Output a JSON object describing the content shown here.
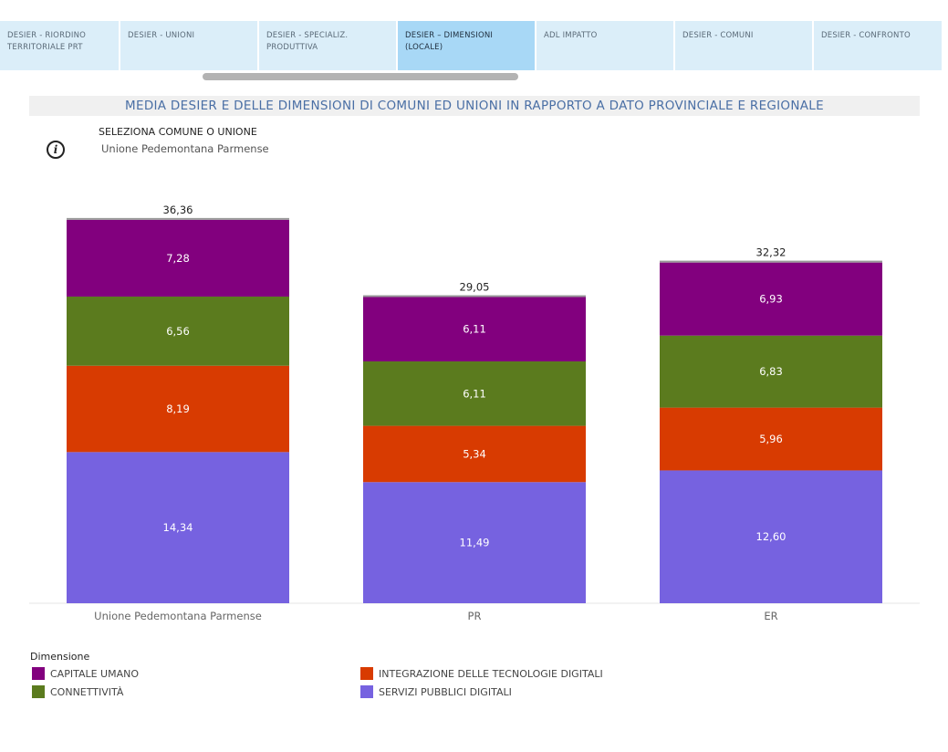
{
  "tabs": [
    {
      "label": "DESIER - RIORDINO TERRITORIALE PRT",
      "active": false
    },
    {
      "label": "DESIER - UNIONI",
      "active": false
    },
    {
      "label": "DESIER - SPECIALIZ. PRODUTTIVA",
      "active": false
    },
    {
      "label": "DESIER – DIMENSIONI (LOCALE)",
      "active": true
    },
    {
      "label": "ADL IMPATTO",
      "active": false
    },
    {
      "label": "DESIER - COMUNI",
      "active": false
    },
    {
      "label": "DESIER - CONFRONTO",
      "active": false
    }
  ],
  "title": "MEDIA DESIER E DELLE DIMENSIONI DI COMUNI ED UNIONI IN RAPPORTO A DATO PROVINCIALE E REGIONALE",
  "selector": {
    "label": "SELEZIONA COMUNE O UNIONE",
    "value": "Unione Pedemontana Parmense",
    "info_icon": "info-icon"
  },
  "legend": {
    "title": "Dimensione"
  },
  "chart_data": {
    "type": "bar",
    "stacked": true,
    "categories": [
      "Unione Pedemontana Parmense",
      "PR",
      "ER"
    ],
    "totals": [
      "36,36",
      "29,05",
      "32,32"
    ],
    "total_values": [
      36.36,
      29.05,
      32.32
    ],
    "series": [
      {
        "name": "SERVIZI PUBBLICI DIGITALI",
        "color": "#7662e0",
        "values": [
          14.34,
          11.49,
          12.6
        ],
        "labels": [
          "14,34",
          "11,49",
          "12,60"
        ]
      },
      {
        "name": "INTEGRAZIONE DELLE TECNOLOGIE DIGITALI",
        "color": "#d83b01",
        "values": [
          8.19,
          5.34,
          5.96
        ],
        "labels": [
          "8,19",
          "5,34",
          "5,96"
        ]
      },
      {
        "name": "CONNETTIVITÀ",
        "color": "#5b7b1e",
        "values": [
          6.56,
          6.11,
          6.83
        ],
        "labels": [
          "6,56",
          "6,11",
          "6,83"
        ]
      },
      {
        "name": "CAPITALE UMANO",
        "color": "#82007e",
        "values": [
          7.28,
          6.11,
          6.93
        ],
        "labels": [
          "7,28",
          "6,11",
          "6,93"
        ]
      }
    ],
    "legend_order": [
      "CAPITALE UMANO",
      "CONNETTIVITÀ",
      "INTEGRAZIONE DELLE TECNOLOGIE DIGITALI",
      "SERVIZI PUBBLICI DIGITALI"
    ],
    "ylim": [
      0,
      36.36
    ],
    "legend_position": "bottom-left"
  }
}
